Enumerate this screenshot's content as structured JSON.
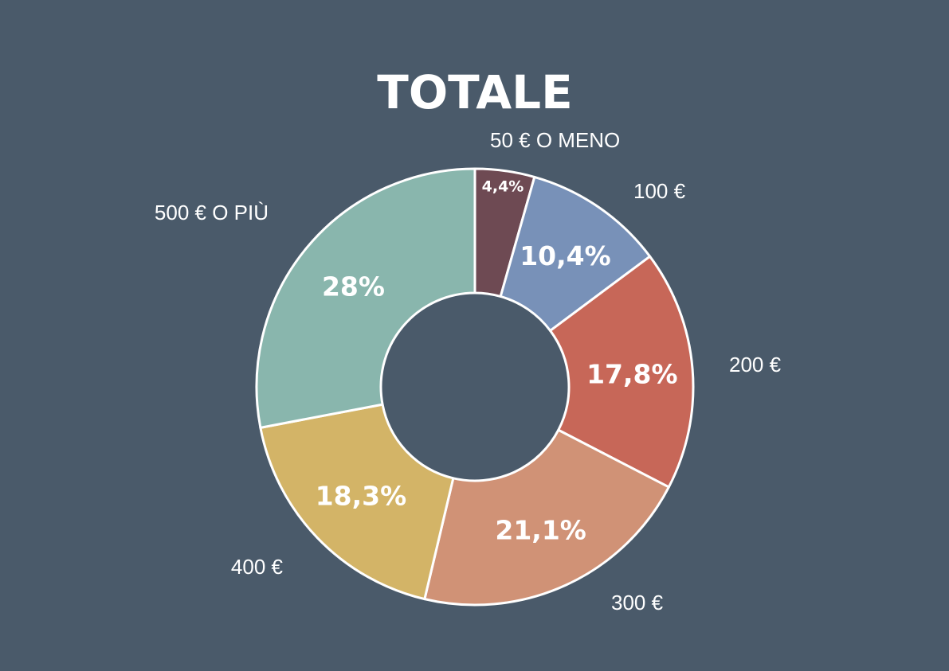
{
  "chart_data": {
    "type": "pie",
    "title": "TOTALE",
    "categories": [
      "50 € O MENO",
      "100 €",
      "200 €",
      "300 €",
      "400 €",
      "500 € O PIÙ"
    ],
    "values": [
      4.4,
      10.4,
      17.8,
      21.1,
      18.3,
      28
    ],
    "value_labels": [
      "4,4%",
      "10,4%",
      "17,8%",
      "21,1%",
      "18,3%",
      "28%"
    ],
    "colors": [
      "#6e4a53",
      "#7891b8",
      "#c76758",
      "#d09276",
      "#d3b467",
      "#89b6ad"
    ],
    "unit": "%",
    "legend": "none",
    "style": "donut"
  },
  "colors": {
    "background": "#4a5a6a",
    "slice_border": "#ffffff",
    "text": "#ffffff"
  }
}
